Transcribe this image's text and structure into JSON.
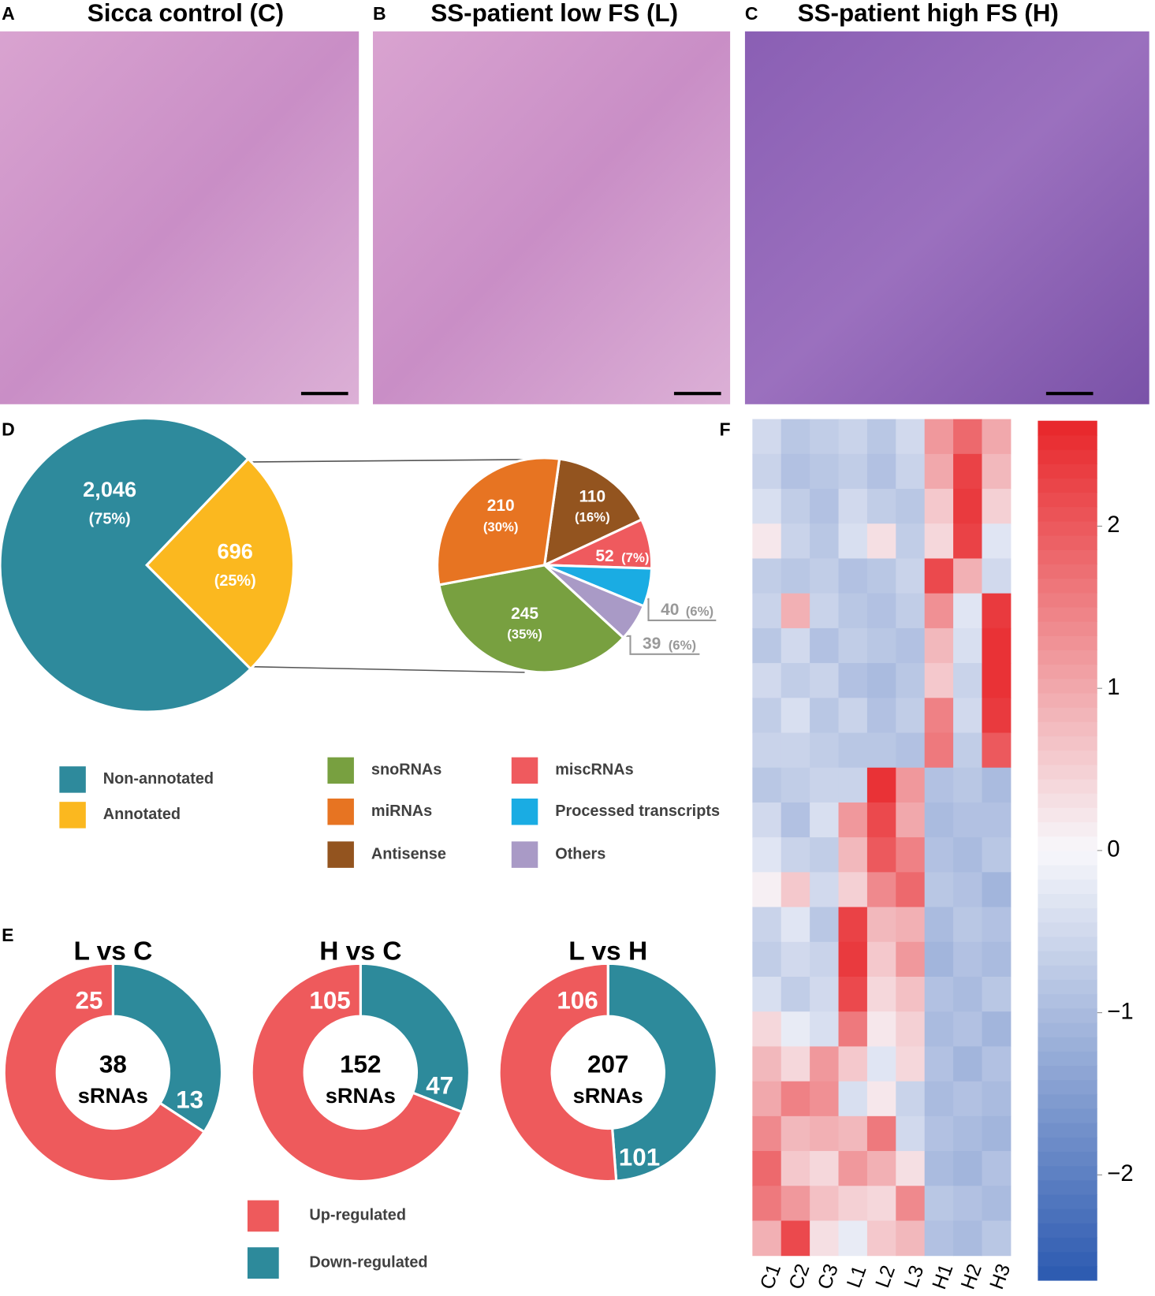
{
  "figure": {
    "panel_labels": [
      "A",
      "B",
      "C",
      "D",
      "E",
      "F"
    ],
    "image_titles": [
      "Sicca control (C)",
      "SS-patient low FS (L)",
      "SS-patient high FS (H)"
    ]
  },
  "chart_data": [
    {
      "type": "pie",
      "categories": [
        "Non-annotated",
        "Annotated"
      ],
      "values": [
        2046,
        696
      ],
      "value_labels": [
        "2,046",
        "696"
      ],
      "percent_labels": [
        "(75%)",
        "(25%)"
      ],
      "colors": [
        "#2e8a9c",
        "#fbb81f"
      ]
    },
    {
      "type": "pie",
      "categories": [
        "snoRNAs",
        "miRNAs",
        "Antisense",
        "miscRNAs",
        "Processed transcripts",
        "Others"
      ],
      "values": [
        245,
        210,
        110,
        52,
        40,
        39
      ],
      "percent_labels": [
        "(35%)",
        "(30%)",
        "(16%)",
        "(7%)",
        "(6%)",
        "(6%)"
      ],
      "colors": [
        "#78a040",
        "#e77422",
        "#93541f",
        "#ef5a5e",
        "#1aace3",
        "#a99ac6"
      ]
    },
    {
      "type": "donut",
      "title": "L vs C",
      "categories": [
        "Up-regulated",
        "Down-regulated"
      ],
      "values": [
        25,
        13
      ],
      "total": 38,
      "center_label": "sRNAs",
      "colors": [
        "#ee5a5c",
        "#2d8a9b"
      ]
    },
    {
      "type": "donut",
      "title": "H vs C",
      "categories": [
        "Up-regulated",
        "Down-regulated"
      ],
      "values": [
        105,
        47
      ],
      "total": 152,
      "center_label": "sRNAs",
      "colors": [
        "#ee5a5c",
        "#2d8a9b"
      ]
    },
    {
      "type": "donut",
      "title": "L vs H",
      "categories": [
        "Up-regulated",
        "Down-regulated"
      ],
      "values": [
        106,
        101
      ],
      "total": 207,
      "center_label": "sRNAs",
      "colors": [
        "#ee5a5c",
        "#2d8a9b"
      ]
    },
    {
      "type": "heatmap",
      "columns": [
        "C1",
        "C2",
        "C3",
        "L1",
        "L2",
        "L3",
        "H1",
        "H2",
        "H3"
      ],
      "zlim": [
        -2.65,
        2.65
      ],
      "zticks": [
        {
          "value": -2,
          "label": "−2"
        },
        {
          "value": -1,
          "label": "−1"
        },
        0,
        1,
        2
      ],
      "colors": [
        "#2b59b0",
        "#f7f7fb",
        "#e8262a"
      ],
      "values": [
        [
          -0.5,
          -0.8,
          -0.7,
          -0.6,
          -0.8,
          -0.5,
          1.2,
          1.8,
          1.0
        ],
        [
          -0.6,
          -0.9,
          -0.8,
          -0.7,
          -0.9,
          -0.6,
          1.0,
          2.3,
          0.8
        ],
        [
          -0.4,
          -0.7,
          -0.9,
          -0.5,
          -0.7,
          -0.8,
          0.6,
          2.4,
          0.5
        ],
        [
          0.2,
          -0.6,
          -0.8,
          -0.4,
          0.3,
          -0.7,
          0.4,
          2.3,
          -0.3
        ],
        [
          -0.7,
          -0.8,
          -0.7,
          -0.9,
          -0.8,
          -0.6,
          2.2,
          0.9,
          -0.5
        ],
        [
          -0.6,
          0.9,
          -0.6,
          -0.8,
          -0.9,
          -0.7,
          1.3,
          -0.3,
          2.4
        ],
        [
          -0.8,
          -0.5,
          -0.9,
          -0.7,
          -0.8,
          -0.9,
          0.8,
          -0.4,
          2.5
        ],
        [
          -0.5,
          -0.7,
          -0.6,
          -0.9,
          -1.0,
          -0.8,
          0.6,
          -0.6,
          2.5
        ],
        [
          -0.7,
          -0.4,
          -0.8,
          -0.6,
          -0.9,
          -0.7,
          1.5,
          -0.5,
          2.4
        ],
        [
          -0.6,
          -0.6,
          -0.7,
          -0.8,
          -0.8,
          -0.9,
          1.6,
          -0.7,
          2.0
        ],
        [
          -0.8,
          -0.7,
          -0.6,
          -0.6,
          2.5,
          1.2,
          -0.9,
          -0.8,
          -1.0
        ],
        [
          -0.5,
          -0.9,
          -0.4,
          1.2,
          2.2,
          1.0,
          -1.0,
          -0.9,
          -0.9
        ],
        [
          -0.3,
          -0.6,
          -0.7,
          0.8,
          2.0,
          1.5,
          -0.9,
          -1.0,
          -0.8
        ],
        [
          0.1,
          0.6,
          -0.5,
          0.5,
          1.4,
          1.8,
          -0.8,
          -0.9,
          -1.1
        ],
        [
          -0.6,
          -0.3,
          -0.8,
          2.3,
          0.8,
          0.9,
          -1.0,
          -0.8,
          -0.9
        ],
        [
          -0.7,
          -0.5,
          -0.6,
          2.4,
          0.6,
          1.2,
          -1.1,
          -0.9,
          -1.0
        ],
        [
          -0.4,
          -0.7,
          -0.5,
          2.2,
          0.4,
          0.7,
          -0.9,
          -1.0,
          -0.8
        ],
        [
          0.4,
          -0.2,
          -0.4,
          1.6,
          0.2,
          0.5,
          -1.0,
          -0.9,
          -1.1
        ],
        [
          0.8,
          0.4,
          1.2,
          0.6,
          -0.3,
          0.4,
          -0.9,
          -1.1,
          -0.9
        ],
        [
          1.0,
          1.5,
          1.3,
          -0.4,
          0.2,
          -0.6,
          -1.0,
          -0.9,
          -1.0
        ],
        [
          1.4,
          0.8,
          0.9,
          0.8,
          1.6,
          -0.5,
          -0.9,
          -1.0,
          -1.1
        ],
        [
          1.8,
          0.6,
          0.4,
          1.2,
          0.9,
          0.3,
          -1.0,
          -1.1,
          -0.9
        ],
        [
          1.6,
          1.2,
          0.7,
          0.5,
          0.4,
          1.4,
          -0.8,
          -0.9,
          -1.0
        ],
        [
          0.9,
          2.2,
          0.3,
          -0.2,
          0.6,
          0.8,
          -0.9,
          -1.0,
          -0.8
        ]
      ]
    }
  ]
}
